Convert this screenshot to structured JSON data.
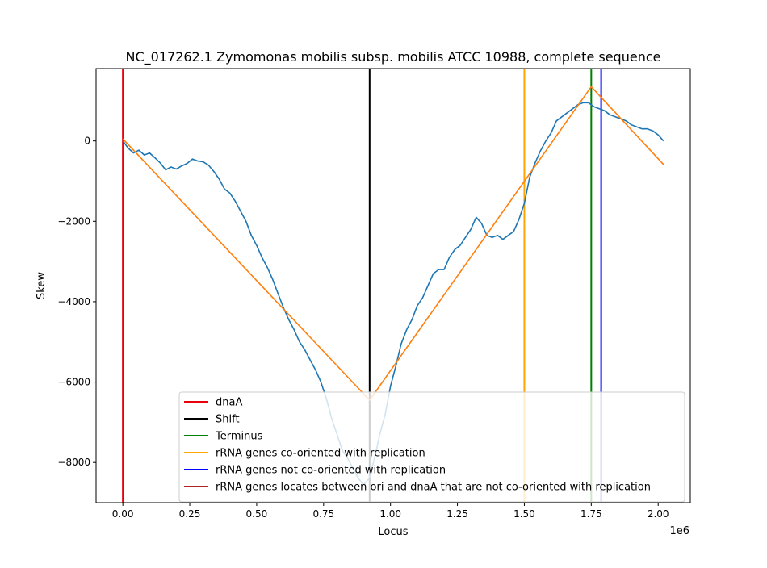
{
  "chart_data": {
    "type": "line",
    "title": "NC_017262.1 Zymomonas mobilis subsp. mobilis ATCC 10988, complete sequence",
    "xlabel": "Locus",
    "ylabel": "Skew",
    "x_offset_label": "1e6",
    "xlim": [
      -0.1,
      2.12
    ],
    "ylim": [
      -9000,
      1800
    ],
    "x_ticks": [
      0.0,
      0.25,
      0.5,
      0.75,
      1.0,
      1.25,
      1.5,
      1.75,
      2.0
    ],
    "x_tick_labels": [
      "0.00",
      "0.25",
      "0.50",
      "0.75",
      "1.00",
      "1.25",
      "1.50",
      "1.75",
      "2.00"
    ],
    "y_ticks": [
      0,
      -2000,
      -4000,
      -6000,
      -8000
    ],
    "y_tick_labels": [
      "0",
      "−2000",
      "−4000",
      "−6000",
      "−8000"
    ],
    "grid": false,
    "legend_position": "lower-right",
    "series": [
      {
        "color": "#1f77b4",
        "x": [
          0.0,
          0.02,
          0.04,
          0.06,
          0.08,
          0.1,
          0.12,
          0.14,
          0.16,
          0.18,
          0.2,
          0.22,
          0.24,
          0.26,
          0.28,
          0.3,
          0.32,
          0.34,
          0.36,
          0.38,
          0.4,
          0.42,
          0.44,
          0.46,
          0.48,
          0.5,
          0.52,
          0.54,
          0.56,
          0.58,
          0.6,
          0.62,
          0.64,
          0.66,
          0.68,
          0.7,
          0.72,
          0.74,
          0.76,
          0.78,
          0.8,
          0.82,
          0.84,
          0.86,
          0.88,
          0.9,
          0.92,
          0.94,
          0.96,
          0.98,
          1.0,
          1.02,
          1.04,
          1.06,
          1.08,
          1.1,
          1.12,
          1.14,
          1.16,
          1.18,
          1.2,
          1.22,
          1.24,
          1.26,
          1.28,
          1.3,
          1.32,
          1.34,
          1.36,
          1.38,
          1.4,
          1.42,
          1.44,
          1.46,
          1.48,
          1.5,
          1.52,
          1.54,
          1.56,
          1.58,
          1.6,
          1.62,
          1.64,
          1.66,
          1.68,
          1.7,
          1.72,
          1.74,
          1.76,
          1.78,
          1.8,
          1.82,
          1.84,
          1.86,
          1.88,
          1.9,
          1.92,
          1.94,
          1.96,
          1.98,
          2.0,
          2.02
        ],
        "y": [
          0,
          -180,
          -300,
          -230,
          -350,
          -300,
          -420,
          -550,
          -720,
          -650,
          -700,
          -620,
          -560,
          -450,
          -500,
          -520,
          -600,
          -760,
          -950,
          -1200,
          -1300,
          -1500,
          -1750,
          -2000,
          -2350,
          -2600,
          -2900,
          -3150,
          -3450,
          -3800,
          -4150,
          -4450,
          -4700,
          -5000,
          -5200,
          -5450,
          -5700,
          -6000,
          -6400,
          -6900,
          -7300,
          -7700,
          -7900,
          -8150,
          -8400,
          -8550,
          -8400,
          -7900,
          -7300,
          -6800,
          -6100,
          -5600,
          -5050,
          -4700,
          -4450,
          -4100,
          -3900,
          -3600,
          -3300,
          -3200,
          -3200,
          -2900,
          -2700,
          -2600,
          -2400,
          -2200,
          -1900,
          -2050,
          -2350,
          -2400,
          -2350,
          -2450,
          -2350,
          -2250,
          -1950,
          -1550,
          -900,
          -550,
          -250,
          0,
          200,
          500,
          600,
          700,
          800,
          900,
          950,
          950,
          850,
          800,
          750,
          650,
          600,
          550,
          500,
          400,
          350,
          300,
          300,
          250,
          150,
          0
        ]
      },
      {
        "color": "#ff7f0e",
        "x": [
          0.0,
          0.922,
          1.75,
          2.022
        ],
        "y": [
          50,
          -6450,
          1350,
          -600
        ]
      }
    ],
    "vlines": [
      {
        "x": 0.0,
        "color": "#e8000b"
      },
      {
        "x": 0.922,
        "color": "#000000"
      },
      {
        "x": 1.75,
        "color": "#008000"
      },
      {
        "x": 1.5,
        "color": "#ffa500"
      },
      {
        "x": 1.787,
        "color": "#0000ff"
      }
    ],
    "legend": [
      {
        "label": "dnaA",
        "color": "#e8000b"
      },
      {
        "label": "Shift",
        "color": "#000000"
      },
      {
        "label": "Terminus",
        "color": "#008000"
      },
      {
        "label": "rRNA genes co-oriented with replication",
        "color": "#ffa500"
      },
      {
        "label": "rRNA genes not co-oriented with replication",
        "color": "#0000ff"
      },
      {
        "label": "rRNA genes locates between ori and dnaA that are not co-oriented with replication",
        "color": "#b22222"
      }
    ]
  }
}
